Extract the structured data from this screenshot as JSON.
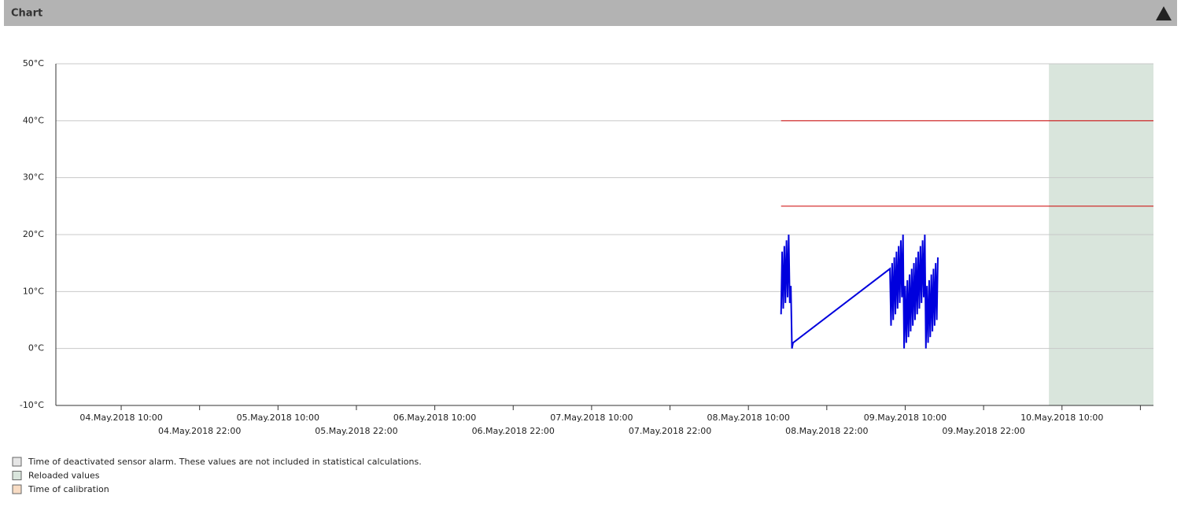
{
  "header": {
    "title": "Chart"
  },
  "chart_data": {
    "type": "line",
    "xlim": [
      "2018-05-04T00:00",
      "2018-05-11T00:00"
    ],
    "ylim": [
      -10,
      50
    ],
    "yticks": [
      {
        "value": -10,
        "label": "-10°C"
      },
      {
        "value": 0,
        "label": "0°C"
      },
      {
        "value": 10,
        "label": "10°C"
      },
      {
        "value": 20,
        "label": "20°C"
      },
      {
        "value": 30,
        "label": "30°C"
      },
      {
        "value": 40,
        "label": "40°C"
      },
      {
        "value": 50,
        "label": "50°C"
      }
    ],
    "xticks": [
      {
        "value": "2018-05-04T10:00",
        "label": "04.May.2018 10:00"
      },
      {
        "value": "2018-05-04T22:00",
        "label": "04.May.2018 22:00"
      },
      {
        "value": "2018-05-05T10:00",
        "label": "05.May.2018 10:00"
      },
      {
        "value": "2018-05-05T22:00",
        "label": "05.May.2018 22:00"
      },
      {
        "value": "2018-05-06T10:00",
        "label": "06.May.2018 10:00"
      },
      {
        "value": "2018-05-06T22:00",
        "label": "06.May.2018 22:00"
      },
      {
        "value": "2018-05-07T10:00",
        "label": "07.May.2018 10:00"
      },
      {
        "value": "2018-05-07T22:00",
        "label": "07.May.2018 22:00"
      },
      {
        "value": "2018-05-08T10:00",
        "label": "08.May.2018 10:00"
      },
      {
        "value": "2018-05-08T22:00",
        "label": "08.May.2018 22:00"
      },
      {
        "value": "2018-05-09T10:00",
        "label": "09.May.2018 10:00"
      },
      {
        "value": "2018-05-09T22:00",
        "label": "09.May.2018 22:00"
      },
      {
        "value": "2018-05-10T10:00",
        "label": "10.May.2018 10:00"
      },
      {
        "value": "2018-05-10T22:00",
        "label": null
      }
    ],
    "grid": true,
    "bands": [
      {
        "x": [
          "2018-05-10T08:00",
          "2018-05-11T00:00"
        ],
        "color": "#d9e5dc"
      }
    ],
    "series": [
      {
        "color": "#0000dd",
        "x": [
          "2018-05-08T15:00",
          "2018-05-08T15:10",
          "2018-05-08T15:20",
          "2018-05-08T15:30",
          "2018-05-08T15:40",
          "2018-05-08T15:50",
          "2018-05-08T16:00",
          "2018-05-08T16:10",
          "2018-05-08T16:20",
          "2018-05-08T16:30",
          "2018-05-08T16:40",
          "2018-05-08T16:50",
          "2018-05-09T07:40",
          "2018-05-09T07:50",
          "2018-05-09T08:00",
          "2018-05-09T08:10",
          "2018-05-09T08:20",
          "2018-05-09T08:30",
          "2018-05-09T08:40",
          "2018-05-09T08:50",
          "2018-05-09T09:00",
          "2018-05-09T09:10",
          "2018-05-09T09:20",
          "2018-05-09T09:30",
          "2018-05-09T09:40",
          "2018-05-09T09:50",
          "2018-05-09T10:00",
          "2018-05-09T10:10",
          "2018-05-09T10:20",
          "2018-05-09T10:30",
          "2018-05-09T10:40",
          "2018-05-09T10:50",
          "2018-05-09T11:00",
          "2018-05-09T11:10",
          "2018-05-09T11:20",
          "2018-05-09T11:30",
          "2018-05-09T11:40",
          "2018-05-09T11:50",
          "2018-05-09T12:00",
          "2018-05-09T12:10",
          "2018-05-09T12:20",
          "2018-05-09T12:30",
          "2018-05-09T12:40",
          "2018-05-09T12:50",
          "2018-05-09T13:00",
          "2018-05-09T13:10",
          "2018-05-09T13:20",
          "2018-05-09T13:30",
          "2018-05-09T13:40",
          "2018-05-09T13:50",
          "2018-05-09T14:00",
          "2018-05-09T14:10",
          "2018-05-09T14:20",
          "2018-05-09T14:30",
          "2018-05-09T14:40",
          "2018-05-09T14:50",
          "2018-05-09T15:00"
        ],
        "values": [
          6,
          17,
          7,
          18,
          8,
          19,
          9,
          20,
          8,
          11,
          0,
          1,
          14,
          4,
          15,
          5,
          16,
          6,
          17,
          7,
          18,
          8,
          19,
          9,
          20,
          0,
          11,
          1,
          12,
          2,
          13,
          3,
          14,
          4,
          15,
          5,
          16,
          6,
          17,
          7,
          18,
          8,
          19,
          9,
          20,
          0,
          11,
          1,
          12,
          2,
          13,
          3,
          14,
          4,
          15,
          5,
          16
        ]
      },
      {
        "color": "#cc0000",
        "x": [
          "2018-05-08T15:00",
          "2018-05-11T00:00"
        ],
        "values": [
          40,
          40
        ]
      },
      {
        "color": "#cc0000",
        "x": [
          "2018-05-08T15:00",
          "2018-05-11T00:00"
        ],
        "values": [
          25,
          25
        ]
      }
    ]
  },
  "legend": [
    {
      "label": "Time of deactivated sensor alarm. These values are not included in statistical calculations.",
      "color": "#e6e6e6"
    },
    {
      "label": "Reloaded values",
      "color": "#d9e5dc"
    },
    {
      "label": "Time of calibration",
      "color": "#f8dcc4"
    }
  ]
}
